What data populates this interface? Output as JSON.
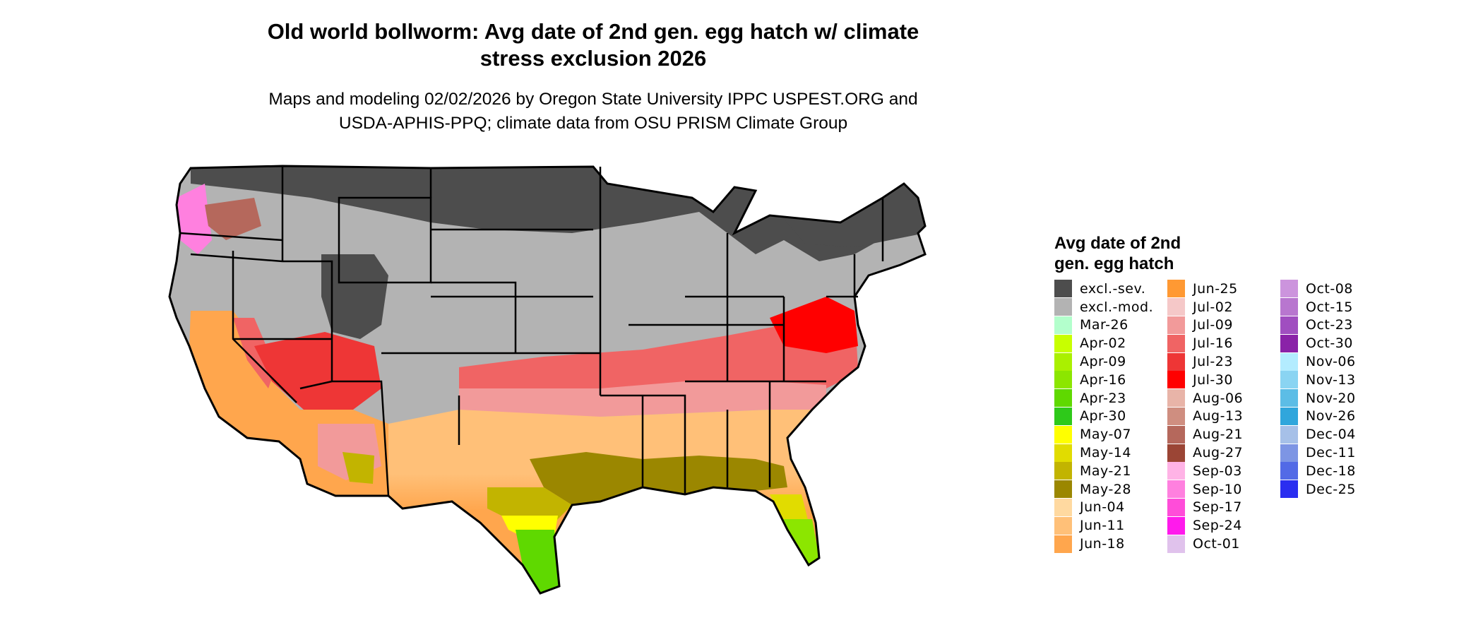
{
  "title": "Old world bollworm: Avg date of 2nd gen. egg hatch w/ climate\nstress exclusion 2026",
  "subtitle": "Maps and modeling 02/02/2026 by Oregon State University IPPC USPEST.ORG and\nUSDA-APHIS-PPQ; climate data from OSU PRISM Climate Group",
  "legend": {
    "title": "Avg date of 2nd\ngen. egg hatch",
    "columns": [
      [
        {
          "label": "excl.-sev.",
          "color": "#4d4d4d"
        },
        {
          "label": "excl.-mod.",
          "color": "#b3b3b3"
        },
        {
          "label": "Mar-26",
          "color": "#b3ffcc"
        },
        {
          "label": "Apr-02",
          "color": "#c8ff00"
        },
        {
          "label": "Apr-09",
          "color": "#aaf000"
        },
        {
          "label": "Apr-16",
          "color": "#8ce600"
        },
        {
          "label": "Apr-23",
          "color": "#5fd900"
        },
        {
          "label": "Apr-30",
          "color": "#2ec91a"
        },
        {
          "label": "May-07",
          "color": "#ffff00"
        },
        {
          "label": "May-14",
          "color": "#e1dc00"
        },
        {
          "label": "May-21",
          "color": "#c2b400"
        },
        {
          "label": "May-28",
          "color": "#9b8700"
        },
        {
          "label": "Jun-04",
          "color": "#ffd9a0"
        },
        {
          "label": "Jun-11",
          "color": "#ffc078"
        },
        {
          "label": "Jun-18",
          "color": "#ffa64d"
        }
      ],
      [
        {
          "label": "Jun-25",
          "color": "#ff9933"
        },
        {
          "label": "Jul-02",
          "color": "#f5c8c8"
        },
        {
          "label": "Jul-09",
          "color": "#f29a9a"
        },
        {
          "label": "Jul-16",
          "color": "#f06464"
        },
        {
          "label": "Jul-23",
          "color": "#ee3636"
        },
        {
          "label": "Jul-30",
          "color": "#ff0000"
        },
        {
          "label": "Aug-06",
          "color": "#e8b4a8"
        },
        {
          "label": "Aug-13",
          "color": "#cf8e80"
        },
        {
          "label": "Aug-21",
          "color": "#b5685c"
        },
        {
          "label": "Aug-27",
          "color": "#9b4535"
        },
        {
          "label": "Sep-03",
          "color": "#ffb3e6"
        },
        {
          "label": "Sep-10",
          "color": "#ff80df"
        },
        {
          "label": "Sep-17",
          "color": "#ff4dd9"
        },
        {
          "label": "Sep-24",
          "color": "#ff1aec"
        },
        {
          "label": "Oct-01",
          "color": "#e0c2ec"
        }
      ],
      [
        {
          "label": "Oct-08",
          "color": "#cc94dd"
        },
        {
          "label": "Oct-15",
          "color": "#b876cf"
        },
        {
          "label": "Oct-23",
          "color": "#a04ec0"
        },
        {
          "label": "Oct-30",
          "color": "#8a22a8"
        },
        {
          "label": "Nov-06",
          "color": "#b3ecff"
        },
        {
          "label": "Nov-13",
          "color": "#8ad4f2"
        },
        {
          "label": "Nov-20",
          "color": "#5cbde6"
        },
        {
          "label": "Nov-26",
          "color": "#30a6dc"
        },
        {
          "label": "Dec-04",
          "color": "#a6c0e8"
        },
        {
          "label": "Dec-11",
          "color": "#7d95e4"
        },
        {
          "label": "Dec-18",
          "color": "#526ae6"
        },
        {
          "label": "Dec-25",
          "color": "#2a2ef0"
        }
      ]
    ]
  }
}
